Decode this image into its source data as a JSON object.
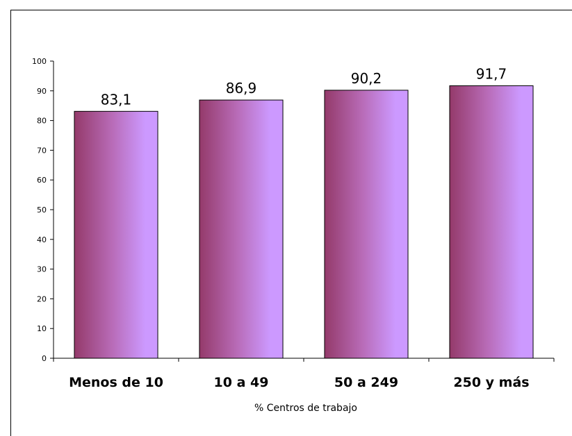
{
  "chart_data": {
    "type": "bar",
    "categories": [
      "Menos de 10",
      "10 a 49",
      "50 a 249",
      "250 y más"
    ],
    "values": [
      83.1,
      86.9,
      90.2,
      91.7
    ],
    "data_labels": [
      "83,1",
      "86,9",
      "90,2",
      "91,7"
    ],
    "title": "",
    "xlabel": "% Centros de trabajo",
    "ylabel": "",
    "ylim": [
      0,
      100
    ],
    "yticks": [
      0,
      10,
      20,
      30,
      40,
      50,
      60,
      70,
      80,
      90,
      100
    ],
    "grid": false,
    "legend": "none",
    "colors": {
      "bar_dark": "#943a6a",
      "bar_mid": "#b86bb7",
      "bar_light": "#cc99ff",
      "bar_stroke": "#000000",
      "axis": "#000000"
    }
  }
}
